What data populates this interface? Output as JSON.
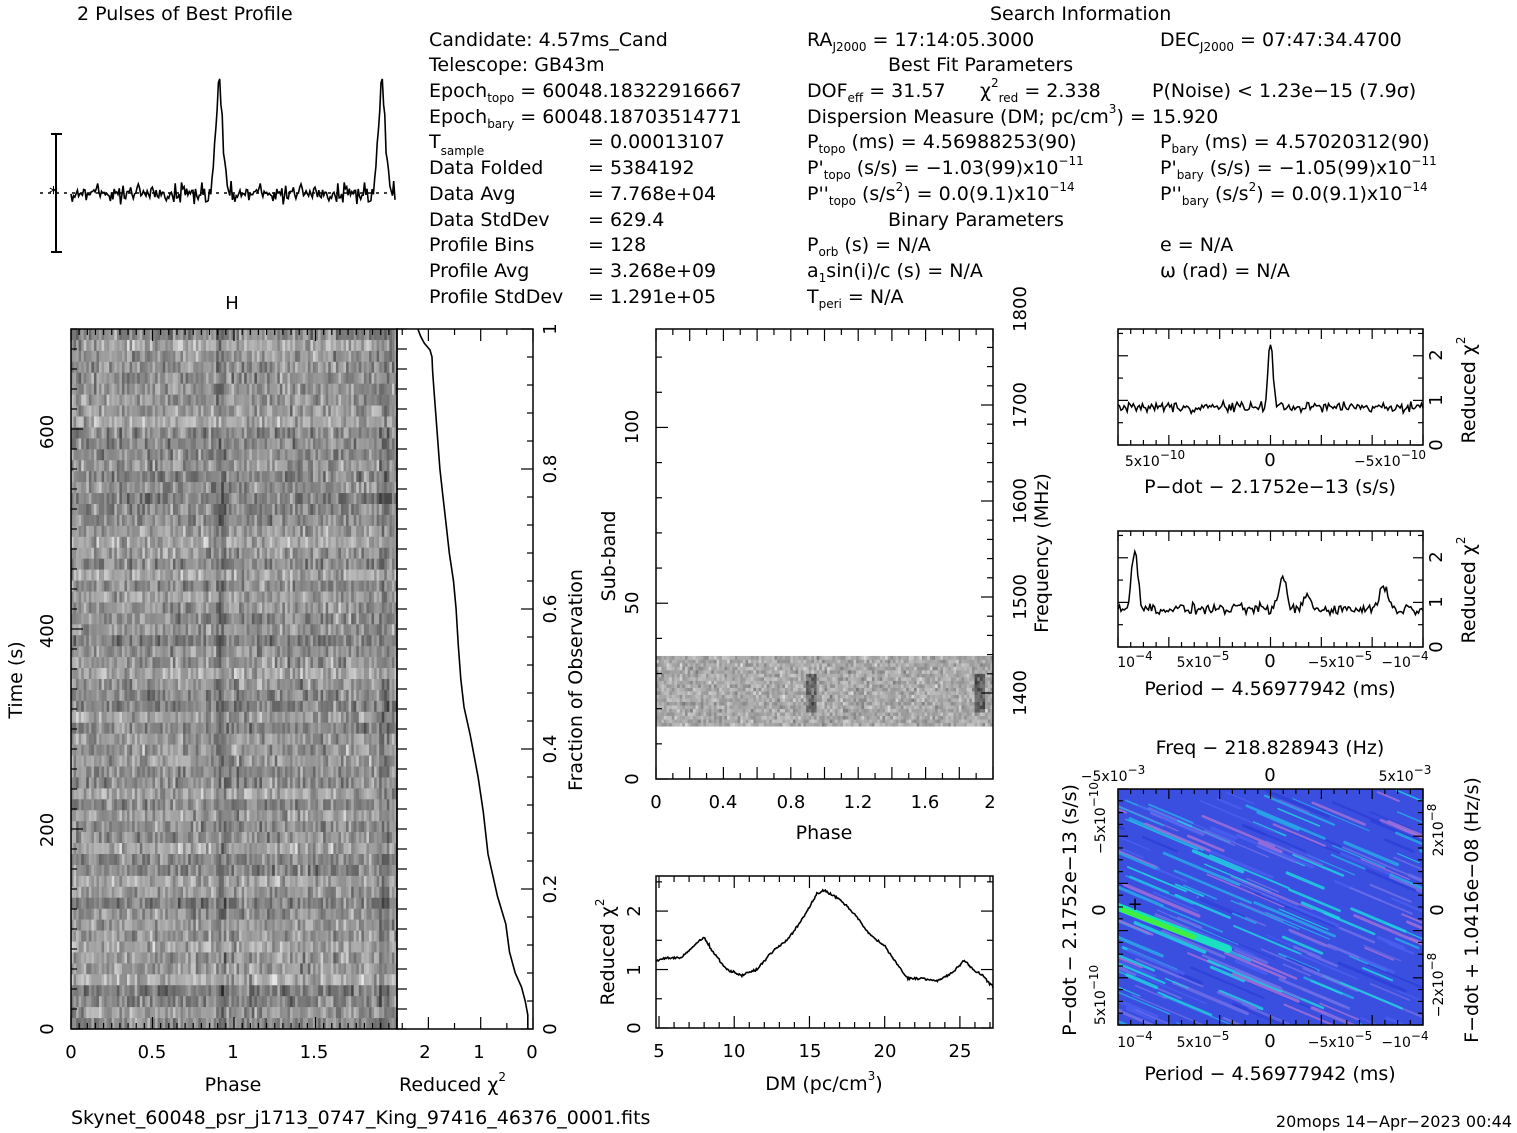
{
  "header": {
    "profile_title": "2 Pulses of Best Profile",
    "search_title": "Search Information",
    "best_fit_title": "Best Fit Parameters",
    "binary_title": "Binary Parameters"
  },
  "candidate_info": {
    "candidate": "Candidate:  4.57ms_Cand",
    "telescope": "Telescope:  GB43m",
    "epoch_topo": {
      "main": "Epoch",
      "sub": "topo",
      "rest": " = 60048.18322916667"
    },
    "epoch_bary": {
      "main": "Epoch",
      "sub": "bary",
      "rest": " = 60048.18703514771"
    },
    "t_sample": {
      "main": "T",
      "sub": "sample",
      "rest": "= 0.00013107"
    },
    "data_folded": {
      "label": "Data Folded",
      "value": "= 5384192"
    },
    "data_avg": {
      "label": "Data Avg",
      "value": "= 7.768e+04"
    },
    "data_stddev": {
      "label": "Data StdDev",
      "value": "= 629.4"
    },
    "profile_bins": {
      "label": "Profile Bins",
      "value": "= 128"
    },
    "profile_avg": {
      "label": "Profile Avg",
      "value": "= 3.268e+09"
    },
    "profile_stddev": {
      "label": "Profile StdDev",
      "value": "= 1.291e+05"
    }
  },
  "search_info": {
    "ra": {
      "main": "RA",
      "sub": "J2000",
      "rest": " = 17:14:05.3000"
    },
    "dec": {
      "main": "DEC",
      "sub": "J2000",
      "rest": " = 07:47:34.4700"
    },
    "dof": {
      "main": "DOF",
      "sub": "eff",
      "rest": " = 31.57"
    },
    "chi2": {
      "main": "χ",
      "sup": "2",
      "sub": "red",
      "rest": " = 2.338"
    },
    "pnoise": "P(Noise) < 1.23e−15  (7.9σ)",
    "dm": {
      "main": "Dispersion Measure (DM; pc/cm",
      "sup": "3",
      "rest": ") = 15.920"
    },
    "p_topo": {
      "main": "P",
      "sub": "topo",
      "rest": " (ms) =  4.56988253(90)"
    },
    "p_bary": {
      "main": "P",
      "sub": "bary",
      "rest": " (ms) =  4.57020312(90)"
    },
    "pd_topo": {
      "main": "P'",
      "sub": "topo",
      "rest": " (s/s) = −1.03(99)x10",
      "sup": "−11"
    },
    "pd_bary": {
      "main": "P'",
      "sub": "bary",
      "rest": " (s/s) = −1.05(99)x10",
      "sup": "−11"
    },
    "pdd_topo": {
      "main": "P''",
      "sub": "topo",
      "rest": " (s/s",
      "sup2": "2",
      "rest2": ") = 0.0(9.1)x10",
      "sup": "−14"
    },
    "pdd_bary": {
      "main": "P''",
      "sub": "bary",
      "rest": " (s/s",
      "sup2": "2",
      "rest2": ") = 0.0(9.1)x10",
      "sup": "−14"
    },
    "p_orb": {
      "main": "P",
      "sub": "orb",
      "rest": " (s) = N/A"
    },
    "e": "e = N/A",
    "a1": {
      "main": "a",
      "sub": "1",
      "rest": "sin(i)/c (s) = N/A"
    },
    "omega": "ω (rad) = N/A",
    "t_peri": {
      "main": "T",
      "sub": "peri",
      "rest": " = N/A"
    }
  },
  "footer": {
    "filename": "Skynet_60048_psr_j1713_0747_King_97416_46376_0001.fits",
    "stamp": "20mops 14−Apr−2023 00:44"
  },
  "chart_data": [
    {
      "type": "line",
      "id": "profile",
      "title": "2 Pulses of Best Profile",
      "x_range": [
        0,
        2
      ],
      "note": "Two repeated pulse profiles with peaks near phase 0.91 and 1.91; dotted line marks mean"
    },
    {
      "type": "heatmap",
      "id": "time_phase",
      "xlabel": "Phase",
      "ylabel": "Time (s)",
      "x_ticks": [
        "0",
        "0.5",
        "1",
        "1.5"
      ],
      "y_ticks": [
        "0",
        "200",
        "400",
        "600"
      ],
      "xlim": [
        0,
        2
      ],
      "ylim": [
        0,
        705
      ],
      "colormap": "grayscale"
    },
    {
      "type": "line",
      "id": "time_chi2",
      "xlabel": "Reduced χ",
      "xlabel_sup": "2",
      "x_ticks": [
        "2",
        "1",
        "0"
      ],
      "xlim": [
        2.6,
        0
      ],
      "right_axis_label": "Fraction of Observation",
      "right_ticks": [
        "0",
        "0.2",
        "0.4",
        "0.6",
        "0.8",
        "1"
      ],
      "x": [
        0.1,
        0.1,
        0.15,
        0.22,
        0.34,
        0.45,
        0.52,
        0.68,
        0.86,
        0.95,
        1.05,
        1.2,
        1.32,
        1.38,
        1.43,
        1.47,
        1.52,
        1.6,
        1.66,
        1.72,
        1.78,
        1.82,
        1.86,
        1.89,
        1.92,
        1.93,
        1.97,
        2.08,
        2.15,
        2.2
      ],
      "y": [
        0.0,
        0.02,
        0.04,
        0.06,
        0.08,
        0.11,
        0.15,
        0.19,
        0.25,
        0.31,
        0.36,
        0.42,
        0.46,
        0.5,
        0.55,
        0.6,
        0.64,
        0.68,
        0.72,
        0.76,
        0.8,
        0.84,
        0.88,
        0.91,
        0.94,
        0.96,
        0.97,
        0.98,
        0.99,
        1.0
      ]
    },
    {
      "type": "heatmap",
      "id": "subband_phase",
      "xlabel": "Phase",
      "ylabel": "Sub-band",
      "right_axis_label": "Frequency (MHz)",
      "x_ticks": [
        "0",
        "0.4",
        "0.8",
        "1.2",
        "1.6",
        "2"
      ],
      "y_ticks": [
        "0",
        "50",
        "100"
      ],
      "right_ticks": [
        "1400",
        "1500",
        "1600",
        "1700",
        "1800"
      ],
      "xlim": [
        0,
        2
      ],
      "ylim": [
        0,
        128
      ],
      "active_subbands": [
        15,
        35
      ],
      "colormap": "grayscale"
    },
    {
      "type": "line",
      "id": "dm_chi2",
      "xlabel": "DM (pc/cm",
      "xlabel_sup": "3",
      "xlabel_tail": ")",
      "ylabel": "Reduced χ",
      "ylabel_sup": "2",
      "x_ticks": [
        "5",
        "10",
        "15",
        "20",
        "25"
      ],
      "y_ticks": [
        "0",
        "1",
        "2"
      ],
      "xlim": [
        4.8,
        27.2
      ],
      "ylim": [
        0,
        2.6
      ],
      "x": [
        4.8,
        5.5,
        6.5,
        7.5,
        8.0,
        8.6,
        9.5,
        10.5,
        11.5,
        12.5,
        13.5,
        14.5,
        15.5,
        16.0,
        17.0,
        18.0,
        19.0,
        20.0,
        20.8,
        21.5,
        22.5,
        23.5,
        24.5,
        25.3,
        25.9,
        26.5,
        27.2
      ],
      "y": [
        1.15,
        1.2,
        1.2,
        1.45,
        1.55,
        1.3,
        1.0,
        0.9,
        1.0,
        1.3,
        1.5,
        1.85,
        2.3,
        2.35,
        2.2,
        1.95,
        1.6,
        1.4,
        1.1,
        0.85,
        0.85,
        0.8,
        0.95,
        1.15,
        1.0,
        0.9,
        0.7
      ]
    },
    {
      "type": "line",
      "id": "pdot_chi2",
      "xlabel": "P−dot − 2.1752e−13 (s/s)",
      "ylabel": "Reduced χ",
      "ylabel_sup": "2",
      "x_ticks": [
        "5x10",
        "0",
        "−5x10"
      ],
      "x_tick_exp": "−10",
      "y_ticks": [
        "0",
        "1",
        "2"
      ],
      "ylim": [
        0,
        2.6
      ],
      "peak": {
        "x": 0,
        "y": 2.35
      }
    },
    {
      "type": "line",
      "id": "period_chi2",
      "xlabel": "Period − 4.56977942 (ms)",
      "ylabel": "Reduced χ",
      "ylabel_sup": "2",
      "x_ticks": [
        "10",
        "5x10",
        "0",
        "−5x10",
        "−10"
      ],
      "x_tick_exps": [
        "−4",
        "−5",
        "",
        "−5",
        "−4"
      ],
      "y_ticks": [
        "0",
        "1",
        "2"
      ],
      "ylim": [
        0,
        2.6
      ],
      "peak": {
        "x": 0.0001,
        "y": 2.3
      }
    },
    {
      "type": "heatmap",
      "id": "period_pdot",
      "title": "Freq − 218.828943 (Hz)",
      "xlabel": "Period − 4.56977942 (ms)",
      "ylabel": "P−dot − 2.1752e−13 (s/s)",
      "right_axis_label": "F−dot + 1.0416e−08 (Hz/s)",
      "top_ticks": [
        "−5x10",
        "0",
        "5x10"
      ],
      "top_tick_exp": "−3",
      "bottom_ticks": [
        "10",
        "5x10",
        "0",
        "−5x10",
        "−10"
      ],
      "bottom_tick_exps": [
        "−4",
        "−5",
        "",
        "−5",
        "−4"
      ],
      "left_ticks": [
        "−5x10",
        "0",
        "5x10"
      ],
      "left_tick_exp": "−10",
      "right_ticks": [
        "2x10",
        "0",
        "−2x10"
      ],
      "right_tick_exp": "−8",
      "colormap": "blue-cyan-green",
      "best": {
        "x": 0.0001,
        "y": 0
      }
    }
  ]
}
